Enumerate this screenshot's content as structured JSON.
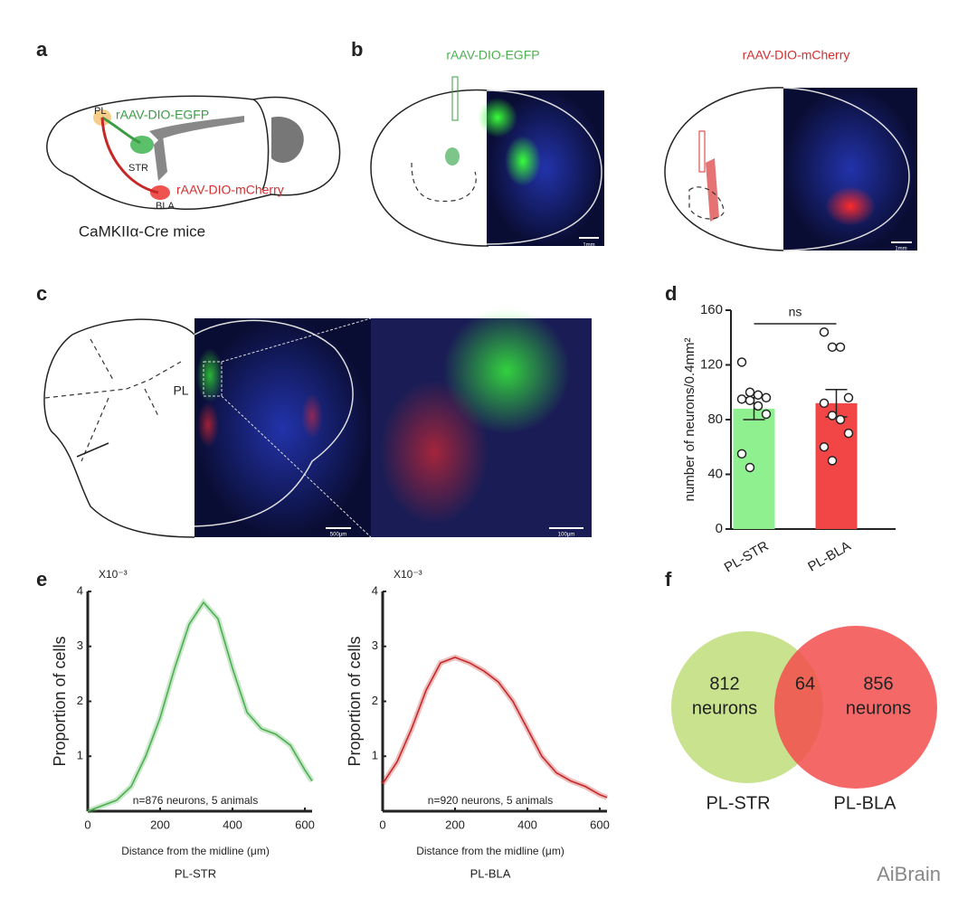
{
  "panel_labels": [
    "a",
    "b",
    "c",
    "d",
    "e",
    "f"
  ],
  "panel_a": {
    "labels": [
      "PL",
      "rAAV-DIO-EGFP",
      "STR",
      "rAAV-DIO-mCherry",
      "BLA"
    ],
    "caption": "CaMKIIα-Cre mice"
  },
  "panel_b": {
    "left_title": "rAAV-DIO-EGFP",
    "right_title": "rAAV-DIO-mCherry",
    "scale_bars": [
      "1mm",
      "1mm"
    ]
  },
  "panel_c": {
    "region": "PL",
    "scale_bars": [
      "500μm",
      "100μm"
    ]
  },
  "chart_data": [
    {
      "type": "bar",
      "y_label": "number of neurons/0.4mm²",
      "annotation": "ns",
      "categories": [
        "PL-STR",
        "PL-BLA"
      ],
      "values": [
        88,
        92
      ],
      "errors": [
        8,
        10
      ],
      "colors": [
        "#8ff08f",
        "#f24545"
      ],
      "points": [
        [
          122,
          100,
          98,
          96,
          95,
          94,
          90,
          84,
          55,
          45
        ],
        [
          144,
          133,
          133,
          96,
          92,
          83,
          80,
          70,
          60,
          50
        ]
      ],
      "ylim": [
        0,
        160
      ],
      "yticks": [
        0,
        40,
        80,
        120,
        160
      ]
    },
    {
      "type": "line",
      "title": "PL-STR",
      "x_label": "Distance from the midline (μm)",
      "y_label": "Proportion of cells",
      "y_multiplier": "X10⁻³",
      "annotation": "n=876 neurons, 5 animals",
      "color": "#4caf50",
      "x": [
        0,
        40,
        80,
        120,
        160,
        200,
        240,
        280,
        320,
        360,
        400,
        440,
        480,
        520,
        560,
        600,
        620
      ],
      "values": [
        0,
        0.1,
        0.2,
        0.45,
        1.0,
        1.7,
        2.6,
        3.4,
        3.8,
        3.5,
        2.6,
        1.8,
        1.5,
        1.4,
        1.2,
        0.75,
        0.55
      ],
      "xlim": [
        0,
        620
      ],
      "ylim": [
        0,
        4
      ],
      "xticks": [
        0,
        200,
        400,
        600
      ],
      "yticks": [
        1,
        2,
        3,
        4
      ]
    },
    {
      "type": "line",
      "title": "PL-BLA",
      "x_label": "Distance from the midline (μm)",
      "y_label": "Proportion of cells",
      "y_multiplier": "X10⁻³",
      "annotation": "n=920 neurons, 5 animals",
      "color": "#c62828",
      "x": [
        0,
        40,
        80,
        120,
        160,
        200,
        240,
        280,
        320,
        360,
        400,
        440,
        480,
        520,
        560,
        600,
        620
      ],
      "values": [
        0.5,
        0.9,
        1.5,
        2.2,
        2.7,
        2.8,
        2.7,
        2.55,
        2.35,
        2.0,
        1.5,
        1.0,
        0.7,
        0.55,
        0.45,
        0.3,
        0.25
      ],
      "xlim": [
        0,
        620
      ],
      "ylim": [
        0,
        4
      ],
      "xticks": [
        0,
        200,
        400,
        600
      ],
      "yticks": [
        1,
        2,
        3,
        4
      ]
    },
    {
      "type": "venn",
      "sets": [
        {
          "name": "PL-STR",
          "value": 812,
          "unit": "neurons",
          "color": "#c8e28e"
        },
        {
          "name": "PL-BLA",
          "value": 856,
          "unit": "neurons",
          "color": "#f34d4d"
        }
      ],
      "overlap": 64
    }
  ],
  "watermark": "AiBrain"
}
